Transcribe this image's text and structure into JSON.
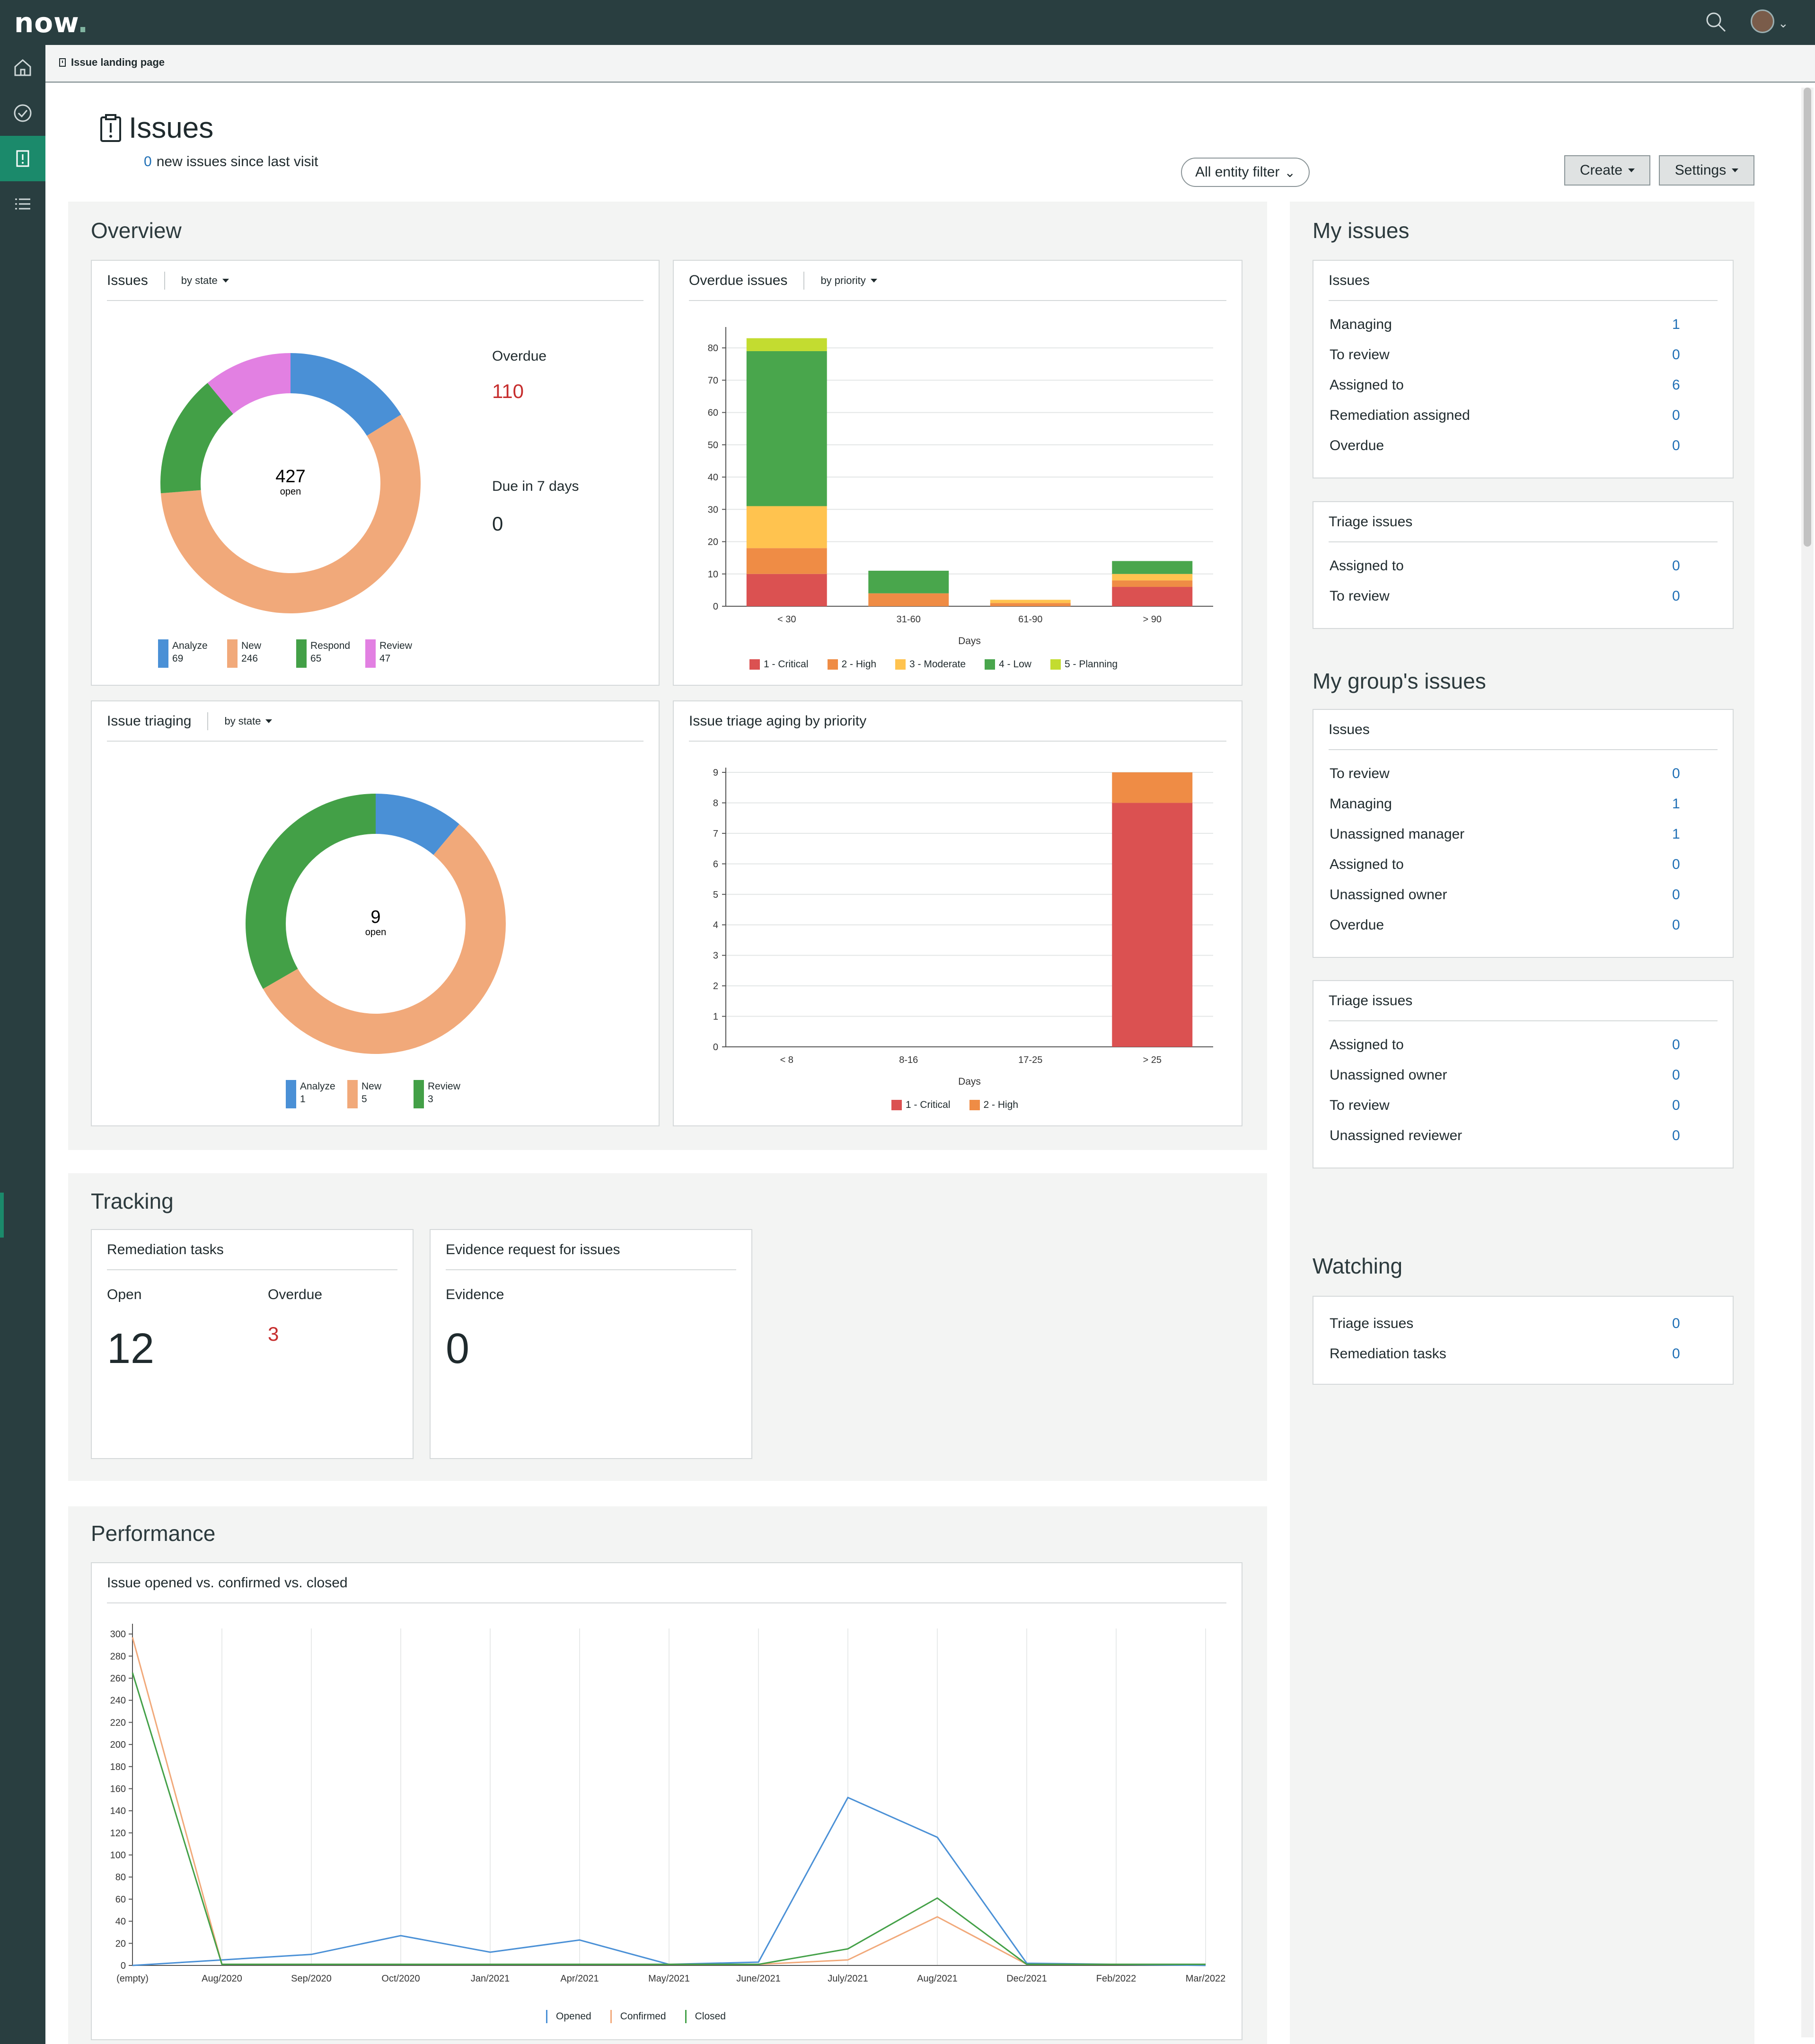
{
  "app": {
    "logo_text": "now",
    "breadcrumb": "Issue landing page"
  },
  "colors": {
    "accent": "#1b8a6b",
    "analyze": "#4a90d6",
    "new": "#f1a97a",
    "respond": "#43a047",
    "review": "#e280e2",
    "critical": "#db5151",
    "high": "#ef8c45",
    "moderate": "#ffc34f",
    "low": "#49a64c",
    "planning": "#c3dc30",
    "opened": "#4a90d6",
    "confirmed": "#f1a97a",
    "closed": "#43a047"
  },
  "icons": {
    "search": "search-icon",
    "home": "home-icon",
    "check": "check-circle-icon",
    "issues": "clipboard-icon",
    "list": "list-icon"
  },
  "header": {
    "title": "Issues",
    "new_count": "0",
    "new_text": "new issues since last visit",
    "entity_filter": "All entity filter",
    "create": "Create",
    "settings": "Settings"
  },
  "overview": {
    "title": "Overview",
    "issues_card": {
      "title": "Issues",
      "by": "by state",
      "center_value": "427",
      "center_label": "open",
      "overdue_label": "Overdue",
      "overdue_value": "110",
      "due_label": "Due in 7 days",
      "due_value": "0",
      "legend": [
        {
          "name": "Analyze",
          "value": "69"
        },
        {
          "name": "New",
          "value": "246"
        },
        {
          "name": "Respond",
          "value": "65"
        },
        {
          "name": "Review",
          "value": "47"
        }
      ]
    },
    "overdue_card": {
      "title": "Overdue issues",
      "by": "by priority"
    },
    "triaging_card": {
      "title": "Issue triaging",
      "by": "by state",
      "center_value": "9",
      "center_label": "open",
      "legend": [
        {
          "name": "Analyze",
          "value": "1"
        },
        {
          "name": "New",
          "value": "5"
        },
        {
          "name": "Review",
          "value": "3"
        }
      ]
    },
    "aging_card": {
      "title": "Issue triage aging by priority"
    }
  },
  "tracking": {
    "title": "Tracking",
    "remediation": {
      "title": "Remediation tasks",
      "open_label": "Open",
      "open_value": "12",
      "overdue_label": "Overdue",
      "overdue_value": "3"
    },
    "evidence": {
      "title": "Evidence request for issues",
      "label": "Evidence",
      "value": "0"
    }
  },
  "performance": {
    "title": "Performance",
    "card_title": "Issue opened vs. confirmed vs. closed"
  },
  "my_issues": {
    "title": "My issues",
    "issues": {
      "title": "Issues",
      "rows": [
        {
          "label": "Managing",
          "value": "1"
        },
        {
          "label": "To review",
          "value": "0"
        },
        {
          "label": "Assigned to",
          "value": "6"
        },
        {
          "label": "Remediation assigned",
          "value": "0"
        },
        {
          "label": "Overdue",
          "value": "0"
        }
      ]
    },
    "triage": {
      "title": "Triage issues",
      "rows": [
        {
          "label": "Assigned to",
          "value": "0"
        },
        {
          "label": "To review",
          "value": "0"
        }
      ]
    }
  },
  "group_issues": {
    "title": "My group's issues",
    "issues": {
      "title": "Issues",
      "rows": [
        {
          "label": "To review",
          "value": "0"
        },
        {
          "label": "Managing",
          "value": "1"
        },
        {
          "label": "Unassigned manager",
          "value": "1"
        },
        {
          "label": "Assigned to",
          "value": "0"
        },
        {
          "label": "Unassigned owner",
          "value": "0"
        },
        {
          "label": "Overdue",
          "value": "0"
        }
      ]
    },
    "triage": {
      "title": "Triage issues",
      "rows": [
        {
          "label": "Assigned to",
          "value": "0"
        },
        {
          "label": "Unassigned owner",
          "value": "0"
        },
        {
          "label": "To review",
          "value": "0"
        },
        {
          "label": "Unassigned reviewer",
          "value": "0"
        }
      ]
    }
  },
  "watching": {
    "title": "Watching",
    "rows": [
      {
        "label": "Triage issues",
        "value": "0"
      },
      {
        "label": "Remediation tasks",
        "value": "0"
      }
    ]
  },
  "chart_data": [
    {
      "id": "issues_by_state",
      "type": "pie",
      "donut": true,
      "categories": [
        "Analyze",
        "New",
        "Respond",
        "Review"
      ],
      "values": [
        69,
        246,
        65,
        47
      ],
      "colors": [
        "#4a90d6",
        "#f1a97a",
        "#43a047",
        "#e280e2"
      ]
    },
    {
      "id": "overdue_by_priority",
      "type": "bar",
      "stacked": true,
      "categories": [
        "< 30",
        "31-60",
        "61-90",
        "> 90"
      ],
      "xlabel": "Days",
      "ylim": [
        0,
        85
      ],
      "yticks": [
        0,
        10,
        20,
        30,
        40,
        50,
        60,
        70,
        80
      ],
      "series": [
        {
          "name": "1 - Critical",
          "color": "#db5151",
          "values": [
            10,
            0,
            0,
            6
          ]
        },
        {
          "name": "2 - High",
          "color": "#ef8c45",
          "values": [
            8,
            4,
            1,
            2
          ]
        },
        {
          "name": "3 - Moderate",
          "color": "#ffc34f",
          "values": [
            13,
            0,
            1,
            2
          ]
        },
        {
          "name": "4 - Low",
          "color": "#49a64c",
          "values": [
            48,
            7,
            0,
            4
          ]
        },
        {
          "name": "5 - Planning",
          "color": "#c3dc30",
          "values": [
            4,
            0,
            0,
            0
          ]
        }
      ]
    },
    {
      "id": "triaging_by_state",
      "type": "pie",
      "donut": true,
      "categories": [
        "Analyze",
        "New",
        "Review"
      ],
      "values": [
        1,
        5,
        3
      ],
      "colors": [
        "#4a90d6",
        "#f1a97a",
        "#43a047"
      ]
    },
    {
      "id": "triage_aging",
      "type": "bar",
      "stacked": true,
      "categories": [
        "< 8",
        "8-16",
        "17-25",
        "> 25"
      ],
      "xlabel": "Days",
      "ylim": [
        0,
        9
      ],
      "yticks": [
        0,
        1,
        2,
        3,
        4,
        5,
        6,
        7,
        8,
        9
      ],
      "series": [
        {
          "name": "1 - Critical",
          "color": "#db5151",
          "values": [
            0,
            0,
            0,
            8
          ]
        },
        {
          "name": "2 - High",
          "color": "#ef8c45",
          "values": [
            0,
            0,
            0,
            1
          ]
        }
      ]
    },
    {
      "id": "opened_confirmed_closed",
      "type": "line",
      "categories": [
        "(empty)",
        "Aug/2020",
        "Sep/2020",
        "Oct/2020",
        "Jan/2021",
        "Apr/2021",
        "May/2021",
        "June/2021",
        "July/2021",
        "Aug/2021",
        "Dec/2021",
        "Feb/2022",
        "Mar/2022"
      ],
      "ylim": [
        0,
        305
      ],
      "yticks": [
        0,
        20,
        40,
        60,
        80,
        100,
        120,
        140,
        160,
        180,
        200,
        220,
        240,
        260,
        280,
        300
      ],
      "series": [
        {
          "name": "Opened",
          "color": "#4a90d6",
          "values": [
            0,
            5,
            10,
            27,
            12,
            23,
            1,
            3,
            152,
            116,
            2,
            1,
            0
          ]
        },
        {
          "name": "Confirmed",
          "color": "#f1a97a",
          "values": [
            297,
            1,
            1,
            1,
            1,
            1,
            1,
            1,
            5,
            44,
            1,
            1,
            1
          ]
        },
        {
          "name": "Closed",
          "color": "#43a047",
          "values": [
            265,
            1,
            1,
            1,
            1,
            1,
            1,
            1,
            15,
            61,
            1,
            1,
            1
          ]
        }
      ]
    }
  ]
}
